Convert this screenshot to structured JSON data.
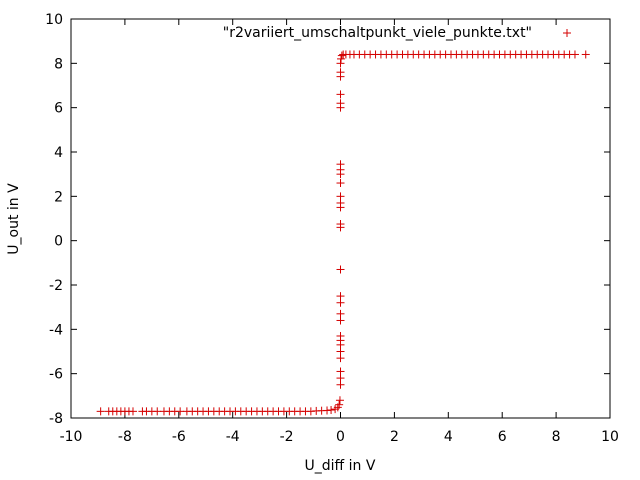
{
  "chart_data": {
    "type": "scatter",
    "xlabel": "U_diff in V",
    "ylabel": "U_out in V",
    "xlim": [
      -10,
      10
    ],
    "ylim": [
      -8,
      10
    ],
    "xticks": [
      -10,
      -8,
      -6,
      -4,
      -2,
      0,
      2,
      4,
      6,
      8,
      10
    ],
    "yticks": [
      -8,
      -6,
      -4,
      -2,
      0,
      2,
      4,
      6,
      8,
      10
    ],
    "grid": false,
    "legend_position": "top-right",
    "marker": "plus",
    "color": "#d40000",
    "series": [
      {
        "name": "\"r2variiert_umschaltpunkt_viele_punkte.txt\"",
        "points": [
          [
            -8.9,
            -7.7
          ],
          [
            -8.6,
            -7.7
          ],
          [
            -8.45,
            -7.7
          ],
          [
            -8.3,
            -7.7
          ],
          [
            -8.15,
            -7.7
          ],
          [
            -8.0,
            -7.7
          ],
          [
            -7.85,
            -7.7
          ],
          [
            -7.7,
            -7.7
          ],
          [
            -7.35,
            -7.7
          ],
          [
            -7.2,
            -7.7
          ],
          [
            -7.0,
            -7.7
          ],
          [
            -6.8,
            -7.7
          ],
          [
            -6.55,
            -7.7
          ],
          [
            -6.35,
            -7.7
          ],
          [
            -6.15,
            -7.7
          ],
          [
            -5.95,
            -7.7
          ],
          [
            -5.7,
            -7.7
          ],
          [
            -5.5,
            -7.7
          ],
          [
            -5.3,
            -7.7
          ],
          [
            -5.1,
            -7.7
          ],
          [
            -4.9,
            -7.7
          ],
          [
            -4.7,
            -7.7
          ],
          [
            -4.5,
            -7.7
          ],
          [
            -4.3,
            -7.7
          ],
          [
            -4.1,
            -7.7
          ],
          [
            -3.9,
            -7.7
          ],
          [
            -3.7,
            -7.7
          ],
          [
            -3.5,
            -7.7
          ],
          [
            -3.3,
            -7.7
          ],
          [
            -3.1,
            -7.7
          ],
          [
            -2.9,
            -7.7
          ],
          [
            -2.7,
            -7.7
          ],
          [
            -2.5,
            -7.7
          ],
          [
            -2.3,
            -7.7
          ],
          [
            -2.1,
            -7.7
          ],
          [
            -1.9,
            -7.7
          ],
          [
            -1.7,
            -7.7
          ],
          [
            -1.5,
            -7.7
          ],
          [
            -1.3,
            -7.7
          ],
          [
            -1.1,
            -7.7
          ],
          [
            -0.9,
            -7.68
          ],
          [
            -0.7,
            -7.67
          ],
          [
            -0.5,
            -7.66
          ],
          [
            -0.35,
            -7.64
          ],
          [
            -0.2,
            -7.6
          ],
          [
            -0.1,
            -7.52
          ],
          [
            -0.05,
            -7.4
          ],
          [
            -0.02,
            -7.2
          ],
          [
            0.0,
            -6.5
          ],
          [
            0.0,
            -6.2
          ],
          [
            0.0,
            -5.9
          ],
          [
            0.0,
            -5.3
          ],
          [
            0.0,
            -5.0
          ],
          [
            0.0,
            -4.7
          ],
          [
            0.0,
            -4.5
          ],
          [
            0.0,
            -4.3
          ],
          [
            0.0,
            -3.6
          ],
          [
            0.0,
            -3.3
          ],
          [
            0.0,
            -2.8
          ],
          [
            0.0,
            -2.5
          ],
          [
            0.0,
            -1.3
          ],
          [
            0.0,
            0.6
          ],
          [
            0.0,
            0.75
          ],
          [
            0.0,
            1.5
          ],
          [
            0.0,
            1.7
          ],
          [
            0.0,
            2.0
          ],
          [
            0.0,
            2.6
          ],
          [
            0.0,
            3.0
          ],
          [
            0.0,
            3.2
          ],
          [
            0.0,
            3.45
          ],
          [
            0.0,
            6.0
          ],
          [
            0.0,
            6.2
          ],
          [
            0.0,
            6.6
          ],
          [
            0.0,
            7.4
          ],
          [
            0.0,
            7.6
          ],
          [
            0.0,
            8.0
          ],
          [
            0.02,
            8.2
          ],
          [
            0.05,
            8.35
          ],
          [
            0.1,
            8.4
          ],
          [
            0.2,
            8.4
          ],
          [
            0.35,
            8.4
          ],
          [
            0.5,
            8.4
          ],
          [
            0.7,
            8.4
          ],
          [
            0.9,
            8.4
          ],
          [
            1.1,
            8.4
          ],
          [
            1.3,
            8.4
          ],
          [
            1.5,
            8.4
          ],
          [
            1.7,
            8.4
          ],
          [
            1.9,
            8.4
          ],
          [
            2.1,
            8.4
          ],
          [
            2.3,
            8.4
          ],
          [
            2.5,
            8.4
          ],
          [
            2.7,
            8.4
          ],
          [
            2.9,
            8.4
          ],
          [
            3.1,
            8.4
          ],
          [
            3.3,
            8.4
          ],
          [
            3.5,
            8.4
          ],
          [
            3.7,
            8.4
          ],
          [
            3.9,
            8.4
          ],
          [
            4.1,
            8.4
          ],
          [
            4.3,
            8.4
          ],
          [
            4.5,
            8.4
          ],
          [
            4.7,
            8.4
          ],
          [
            4.9,
            8.4
          ],
          [
            5.1,
            8.4
          ],
          [
            5.3,
            8.4
          ],
          [
            5.5,
            8.4
          ],
          [
            5.7,
            8.4
          ],
          [
            5.9,
            8.4
          ],
          [
            6.1,
            8.4
          ],
          [
            6.3,
            8.4
          ],
          [
            6.5,
            8.4
          ],
          [
            6.7,
            8.4
          ],
          [
            6.9,
            8.4
          ],
          [
            7.1,
            8.4
          ],
          [
            7.3,
            8.4
          ],
          [
            7.5,
            8.4
          ],
          [
            7.7,
            8.4
          ],
          [
            7.9,
            8.4
          ],
          [
            8.1,
            8.4
          ],
          [
            8.3,
            8.4
          ],
          [
            8.5,
            8.4
          ],
          [
            8.7,
            8.4
          ],
          [
            9.1,
            8.4
          ]
        ]
      }
    ]
  }
}
